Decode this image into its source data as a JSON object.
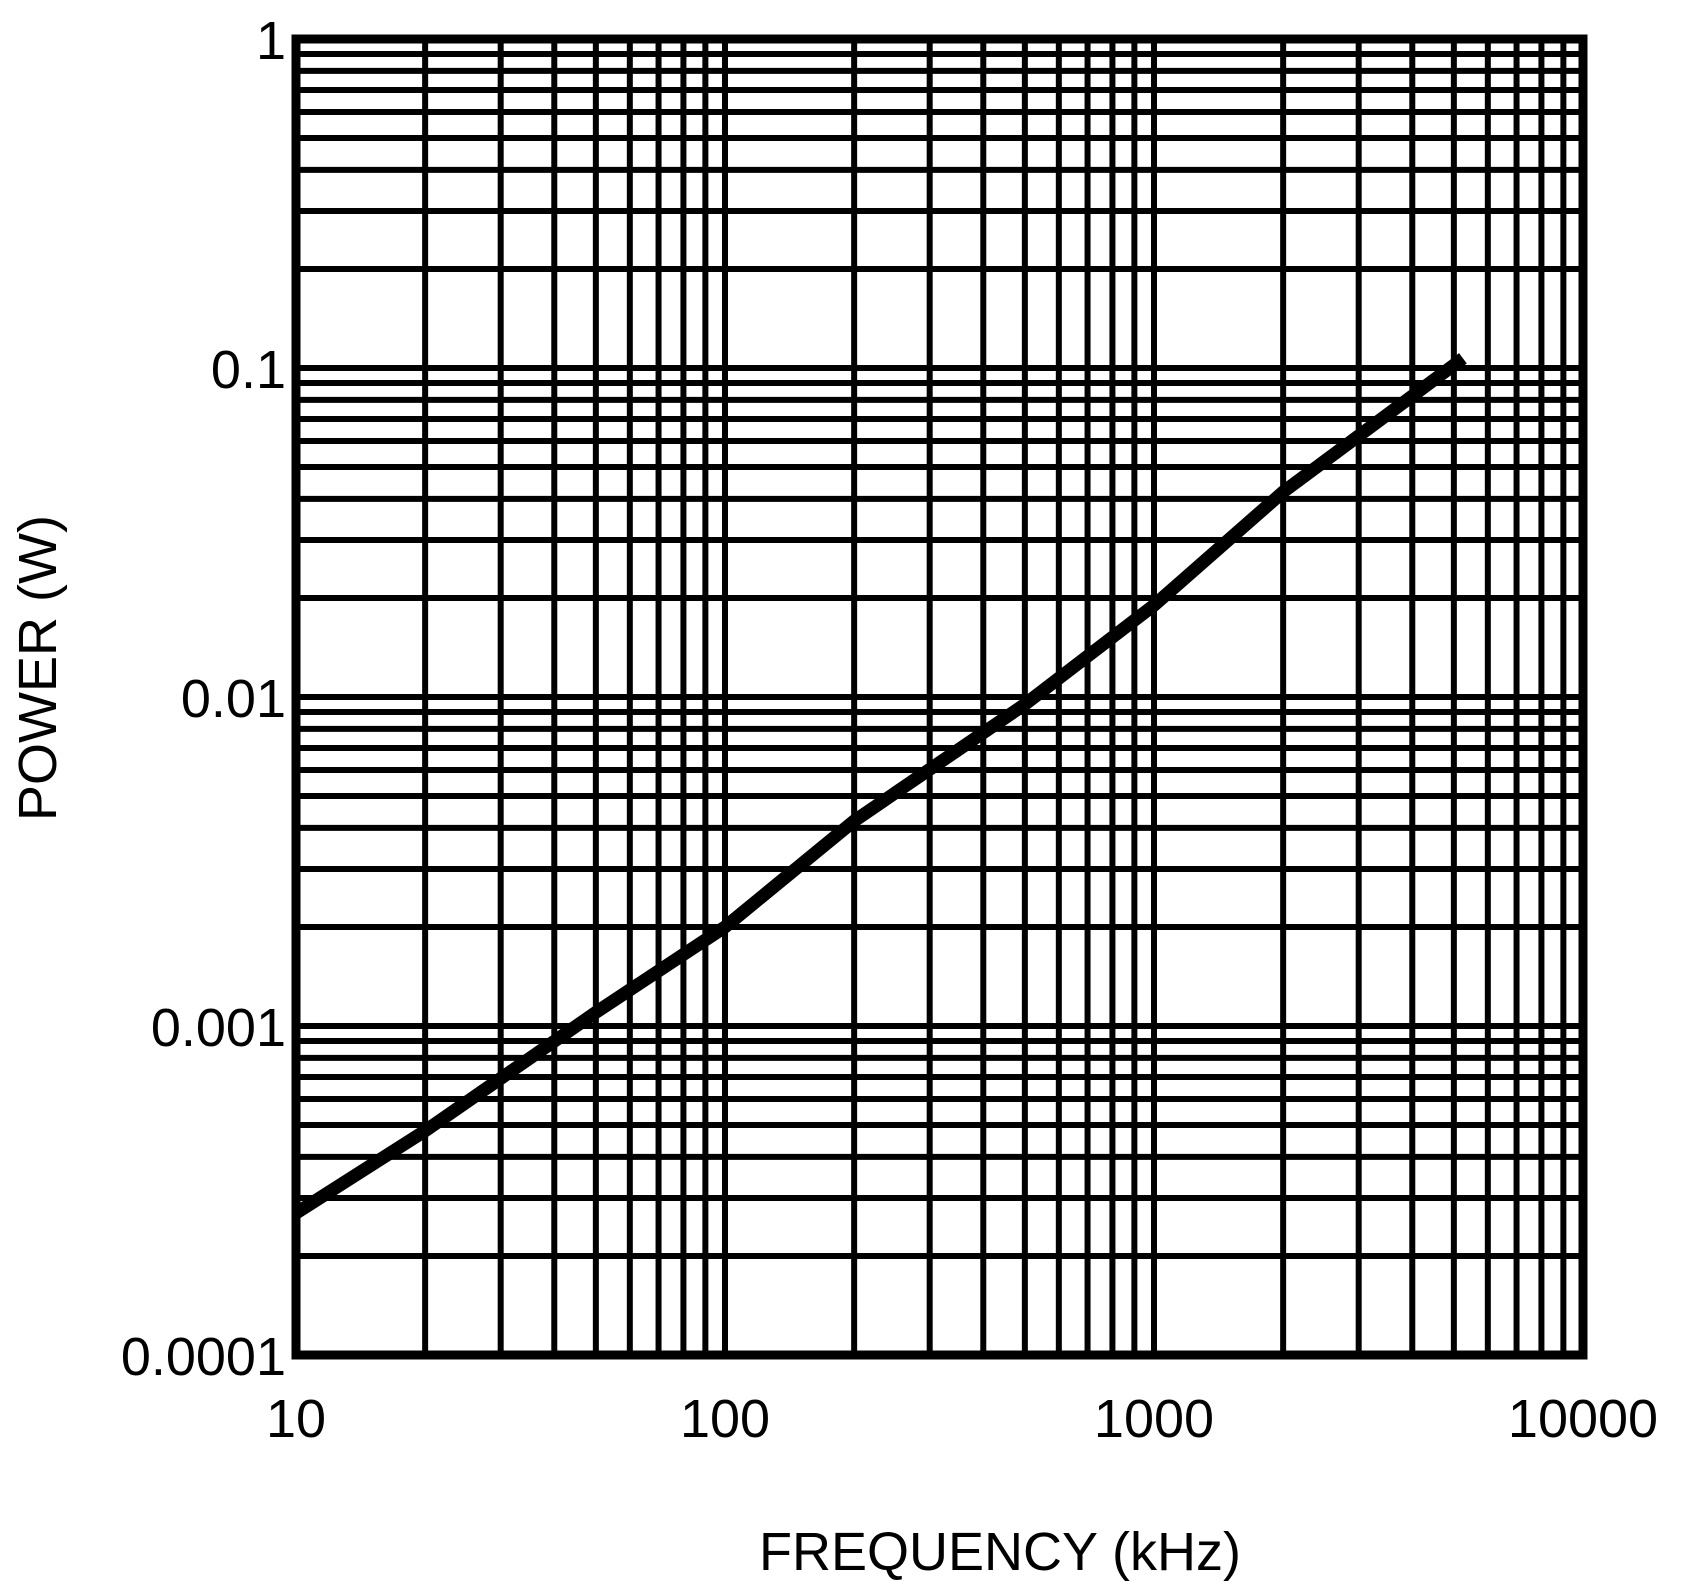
{
  "chart_data": {
    "type": "line",
    "title": "",
    "xlabel": "FREQUENCY (kHz)",
    "ylabel": "POWER (W)",
    "xscale": "log",
    "yscale": "log",
    "xlim": [
      10,
      10000
    ],
    "ylim": [
      0.0001,
      1
    ],
    "xticks": [
      10,
      100,
      1000,
      10000
    ],
    "xtick_labels": [
      "10",
      "100",
      "1000",
      "10000"
    ],
    "yticks": [
      0.0001,
      0.001,
      0.01,
      0.1,
      1
    ],
    "ytick_labels": [
      "0.0001",
      "0.001",
      "0.01",
      "0.1",
      "1"
    ],
    "grid": true,
    "grid_minor": true,
    "colors": {
      "line": "#000000",
      "grid": "#000000",
      "background": "#ffffff"
    },
    "series": [
      {
        "x": [
          10,
          20,
          50,
          100,
          200,
          500,
          1000,
          2000,
          5250
        ],
        "y": [
          0.00027,
          0.00048,
          0.0011,
          0.002,
          0.0042,
          0.0095,
          0.019,
          0.042,
          0.107
        ]
      }
    ]
  }
}
